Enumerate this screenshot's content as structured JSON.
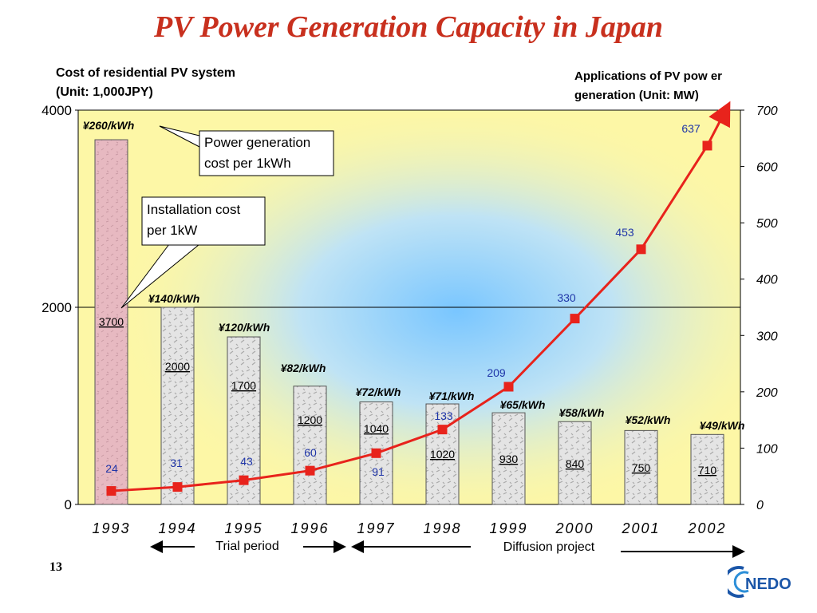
{
  "title": "PV Power Generation Capacity in Japan",
  "left_axis_label": [
    "Cost of residential PV system",
    "(Unit: 1,000JPY)"
  ],
  "right_axis_label": [
    "Applications of PV pow er",
    "generation (Unit: MW)"
  ],
  "page_number": "13",
  "logo_text": "NEDO",
  "callouts": {
    "power_cost": [
      "Power generation",
      "cost per 1kWh"
    ],
    "install_cost": [
      "Installation cost",
      "per 1kW"
    ]
  },
  "periods": {
    "trial": "Trial period",
    "diffusion": "Diffusion project"
  },
  "colors": {
    "title": "#c8301e",
    "line": "#e8231c",
    "line_value_text": "#1f35a8",
    "first_bar": "#e7b9c1",
    "bar": "#e4e4e4",
    "plot_bg": "#fdf7a6"
  },
  "chart_data": {
    "type": "bar+line",
    "categories": [
      "1993",
      "1994",
      "1995",
      "1996",
      "1997",
      "1998",
      "1999",
      "2000",
      "2001",
      "2002"
    ],
    "series": [
      {
        "name": "Installation cost per 1kW",
        "axis": "left",
        "values": [
          3700,
          2000,
          1700,
          1200,
          1040,
          1020,
          930,
          840,
          750,
          710
        ]
      },
      {
        "name": "Applications of PV power generation",
        "axis": "right",
        "values": [
          24,
          31,
          43,
          60,
          91,
          133,
          209,
          330,
          453,
          637
        ]
      }
    ],
    "bar_labels": [
      "3700",
      "2000",
      "1700",
      "1200",
      "1040",
      "1020",
      "930",
      "840",
      "750",
      "710"
    ],
    "line_labels": [
      "24",
      "31",
      "43",
      "60",
      "91",
      "133",
      "209",
      "330",
      "453",
      "637"
    ],
    "cost_per_kwh": [
      "¥260/kWh",
      "¥140/kWh",
      "¥120/kWh",
      "¥82/kWh",
      "¥72/kWh",
      "¥71/kWh",
      "¥65/kWh",
      "¥58/kWh",
      "¥52/kWh",
      "¥49/kWh"
    ],
    "left_ylim": [
      0,
      4000
    ],
    "left_ticks": [
      "0",
      "2000",
      "4000"
    ],
    "right_ylim": [
      0,
      700
    ],
    "right_ticks": [
      "0",
      "100",
      "200",
      "300",
      "400",
      "500",
      "600",
      "700"
    ]
  }
}
